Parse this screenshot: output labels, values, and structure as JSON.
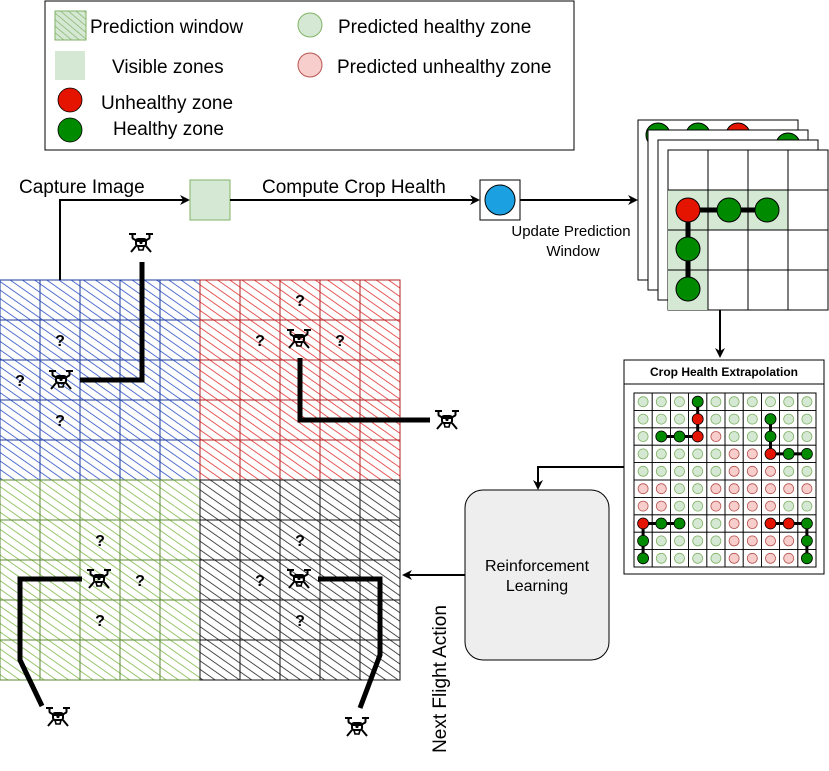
{
  "legend": {
    "prediction_window": "Prediction window",
    "visible_zones": "Visible zones",
    "unhealthy_zone": "Unhealthy zone",
    "healthy_zone": "Healthy zone",
    "predicted_healthy": "Predicted healthy zone",
    "predicted_unhealthy": "Predicted unhealthy zone"
  },
  "flow": {
    "capture_image": "Capture Image",
    "compute_crop_health": "Compute Crop Health",
    "update_prediction_line1": "Update Prediction",
    "update_prediction_line2": "Window",
    "extrapolation_title": "Crop Health Extrapolation",
    "rl_line1": "Reinforcement",
    "rl_line2": "Learning",
    "next_flight_action": "Next Flight Action"
  },
  "unknown_mark": "?",
  "colors": {
    "blue_zone": "#2b4fc4",
    "red_zone": "#e03030",
    "green_zone": "#7fb84a",
    "dark_zone": "#222222",
    "visible_fill": "#d5e8d4",
    "visible_stroke": "#82b366",
    "healthy": "#008a00",
    "unhealthy": "#e51400",
    "predicted_unhealthy_fill": "#f8cecc",
    "predicted_unhealthy_stroke": "#b85450",
    "sensor_blue": "#1ba1e2",
    "rl_fill": "#eeeeee"
  }
}
